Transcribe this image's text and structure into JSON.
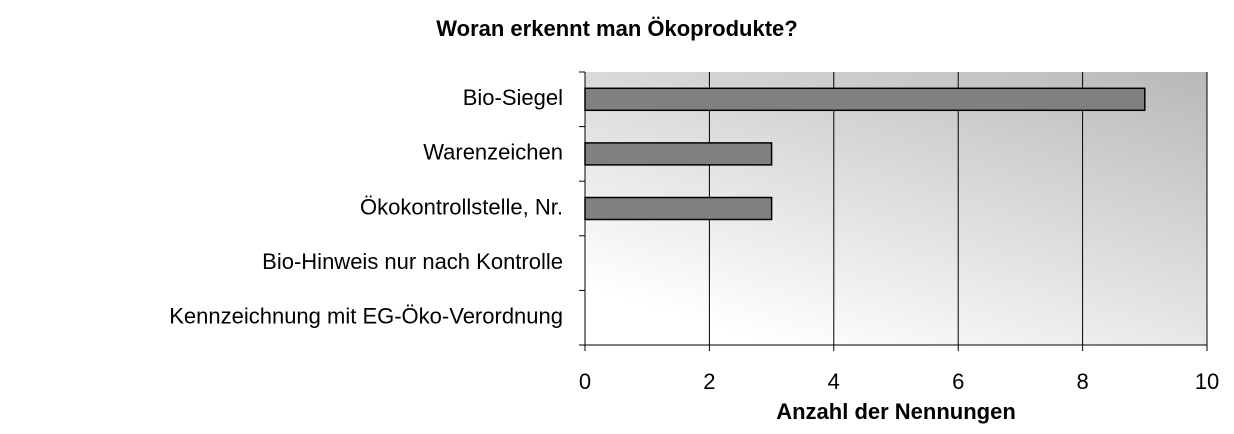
{
  "chart_data": {
    "type": "bar",
    "orientation": "horizontal",
    "title": "Woran erkennt man Ökoprodukte?",
    "x_label": "Anzahl der Nennungen",
    "categories": [
      "Bio-Siegel",
      "Warenzeichen",
      "Ökokontrollstelle, Nr.",
      "Bio-Hinweis nur nach Kontrolle",
      "Kennzeichnung mit EG-Öko-Verordnung"
    ],
    "values": [
      9,
      3,
      3,
      0,
      0
    ],
    "color": "#808080",
    "xlim": [
      0,
      10
    ],
    "xticks": [
      0,
      2,
      4,
      6,
      8,
      10
    ],
    "grid": true
  }
}
